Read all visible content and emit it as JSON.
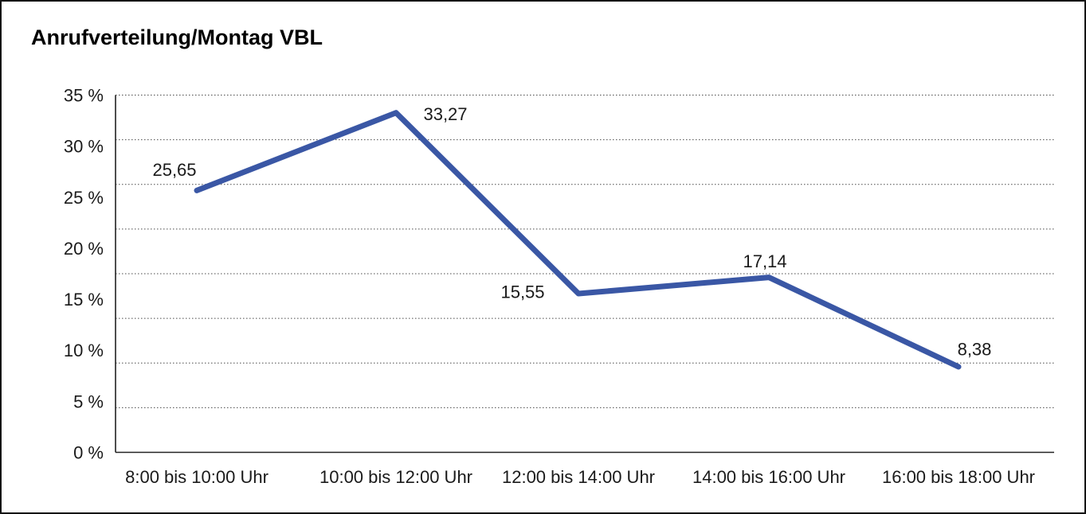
{
  "title": "Anrufverteilung/Montag VBL",
  "chart_data": {
    "type": "line",
    "title": "Anrufverteilung/Montag VBL",
    "categories": [
      "8:00 bis 10:00 Uhr",
      "10:00 bis 12:00 Uhr",
      "12:00 bis 14:00 Uhr",
      "14:00 bis 16:00 Uhr",
      "16:00 bis 18:00 Uhr"
    ],
    "values": [
      25.65,
      33.27,
      15.55,
      17.14,
      8.38
    ],
    "data_labels": [
      "25,65",
      "33,27",
      "15,55",
      "17,14",
      "8,38"
    ],
    "xlabel": "",
    "ylabel": "",
    "ylim": [
      0,
      35
    ],
    "y_tick_step": 5,
    "y_tick_labels": [
      "0 %",
      "5 %",
      "10 %",
      "15 %",
      "20 %",
      "25 %",
      "30 %",
      "35 %"
    ],
    "grid": "horizontal-dotted",
    "gridline_count": 9,
    "legend": "none",
    "line_color": "#3A57A5",
    "axis_color": "#222222",
    "grid_color": "#4a4a4a",
    "label_color": "#1a1a1a"
  }
}
